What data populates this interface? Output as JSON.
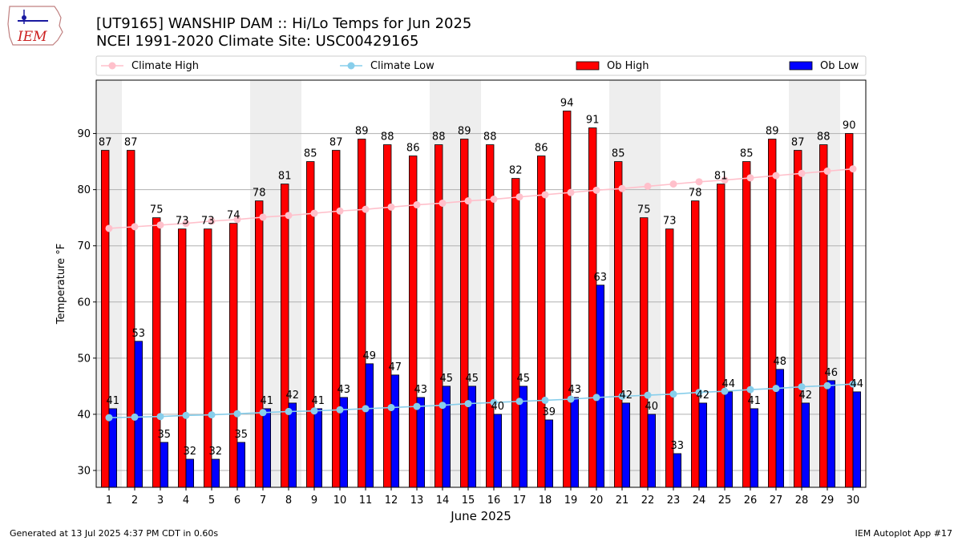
{
  "title_line1": "[UT9165] WANSHIP DAM :: Hi/Lo Temps for Jun 2025",
  "title_line2": "NCEI 1991-2020 Climate Site: USC00429165",
  "footer_left": "Generated at 13 Jul 2025 4:37 PM CDT in 0.60s",
  "footer_right": "IEM Autoplot App #17",
  "logo_text": "IEM",
  "colors": {
    "ob_high": "#ff0000",
    "ob_low": "#0000ff",
    "climate_high": "#ffc0cb",
    "climate_low": "#87ceeb",
    "weekend_shade": "#eeeeee"
  },
  "chart_data": {
    "type": "bar",
    "xlabel": "June 2025",
    "ylabel": "Temperature °F",
    "ylim": [
      27,
      99.5
    ],
    "yticks": [
      30,
      40,
      50,
      60,
      70,
      80,
      90
    ],
    "grid": "horizontal",
    "legend_placement": "top",
    "categories": [
      "1",
      "2",
      "3",
      "4",
      "5",
      "6",
      "7",
      "8",
      "9",
      "10",
      "11",
      "12",
      "13",
      "14",
      "15",
      "16",
      "17",
      "18",
      "19",
      "20",
      "21",
      "22",
      "23",
      "24",
      "25",
      "26",
      "27",
      "28",
      "29",
      "30"
    ],
    "weekend_days": [
      1,
      7,
      8,
      14,
      15,
      21,
      22,
      28,
      29
    ],
    "series": [
      {
        "name": "Ob High",
        "kind": "bar",
        "values": [
          87,
          87,
          75,
          73,
          73,
          74,
          78,
          81,
          85,
          87,
          89,
          88,
          86,
          88,
          89,
          88,
          82,
          86,
          94,
          91,
          85,
          75,
          73,
          78,
          81,
          85,
          89,
          87,
          88,
          90
        ]
      },
      {
        "name": "Ob Low",
        "kind": "bar",
        "values": [
          41,
          53,
          35,
          32,
          32,
          35,
          41,
          42,
          41,
          43,
          49,
          47,
          43,
          45,
          45,
          40,
          45,
          39,
          43,
          63,
          42,
          40,
          33,
          42,
          44,
          41,
          48,
          42,
          46,
          44
        ]
      },
      {
        "name": "Climate High",
        "kind": "line",
        "values": [
          73.1,
          73.4,
          73.7,
          74.0,
          74.4,
          74.7,
          75.1,
          75.4,
          75.8,
          76.2,
          76.5,
          76.9,
          77.3,
          77.6,
          78.0,
          78.3,
          78.7,
          79.1,
          79.5,
          79.9,
          80.2,
          80.6,
          81.0,
          81.4,
          81.7,
          82.1,
          82.5,
          82.9,
          83.3,
          83.7
        ]
      },
      {
        "name": "Climate Low",
        "kind": "line",
        "values": [
          39.4,
          39.5,
          39.6,
          39.8,
          39.9,
          40.1,
          40.3,
          40.5,
          40.6,
          40.8,
          41.0,
          41.2,
          41.4,
          41.6,
          41.9,
          42.1,
          42.3,
          42.5,
          42.7,
          43.0,
          43.2,
          43.4,
          43.6,
          43.9,
          44.1,
          44.4,
          44.6,
          44.9,
          45.1,
          45.4
        ]
      }
    ],
    "legend": [
      "Climate High",
      "Climate Low",
      "Ob High",
      "Ob Low"
    ]
  }
}
